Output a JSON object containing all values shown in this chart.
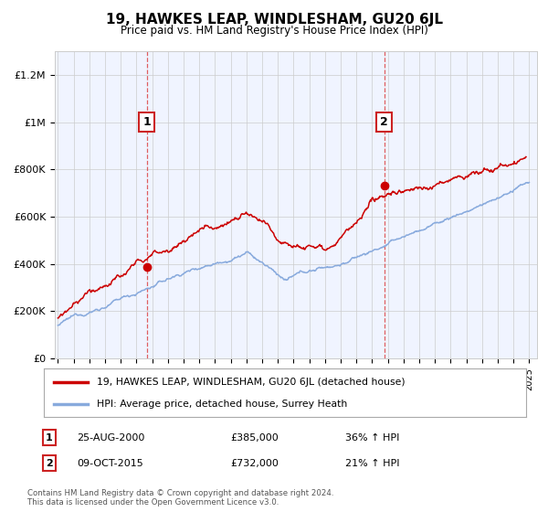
{
  "title": "19, HAWKES LEAP, WINDLESHAM, GU20 6JL",
  "subtitle": "Price paid vs. HM Land Registry's House Price Index (HPI)",
  "ylabel_ticks": [
    "£0",
    "£200K",
    "£400K",
    "£600K",
    "£800K",
    "£1M",
    "£1.2M"
  ],
  "ytick_values": [
    0,
    200000,
    400000,
    600000,
    800000,
    1000000,
    1200000
  ],
  "ylim": [
    0,
    1300000
  ],
  "xlim_start": 1994.8,
  "xlim_end": 2025.5,
  "sale1_year": 2000.65,
  "sale1_price": 385000,
  "sale1_label": "1",
  "sale2_year": 2015.77,
  "sale2_price": 732000,
  "sale2_label": "2",
  "line_color_red": "#cc0000",
  "line_color_blue": "#88aadd",
  "vline_color": "#dd4444",
  "grid_color": "#cccccc",
  "background_color": "#ffffff",
  "plot_bg_color": "#f0f4ff",
  "legend_red_label": "19, HAWKES LEAP, WINDLESHAM, GU20 6JL (detached house)",
  "legend_blue_label": "HPI: Average price, detached house, Surrey Heath",
  "annotation1_date": "25-AUG-2000",
  "annotation1_price": "£385,000",
  "annotation1_hpi": "36% ↑ HPI",
  "annotation2_date": "09-OCT-2015",
  "annotation2_price": "£732,000",
  "annotation2_hpi": "21% ↑ HPI",
  "footnote1": "Contains HM Land Registry data © Crown copyright and database right 2024.",
  "footnote2": "This data is licensed under the Open Government Licence v3.0."
}
